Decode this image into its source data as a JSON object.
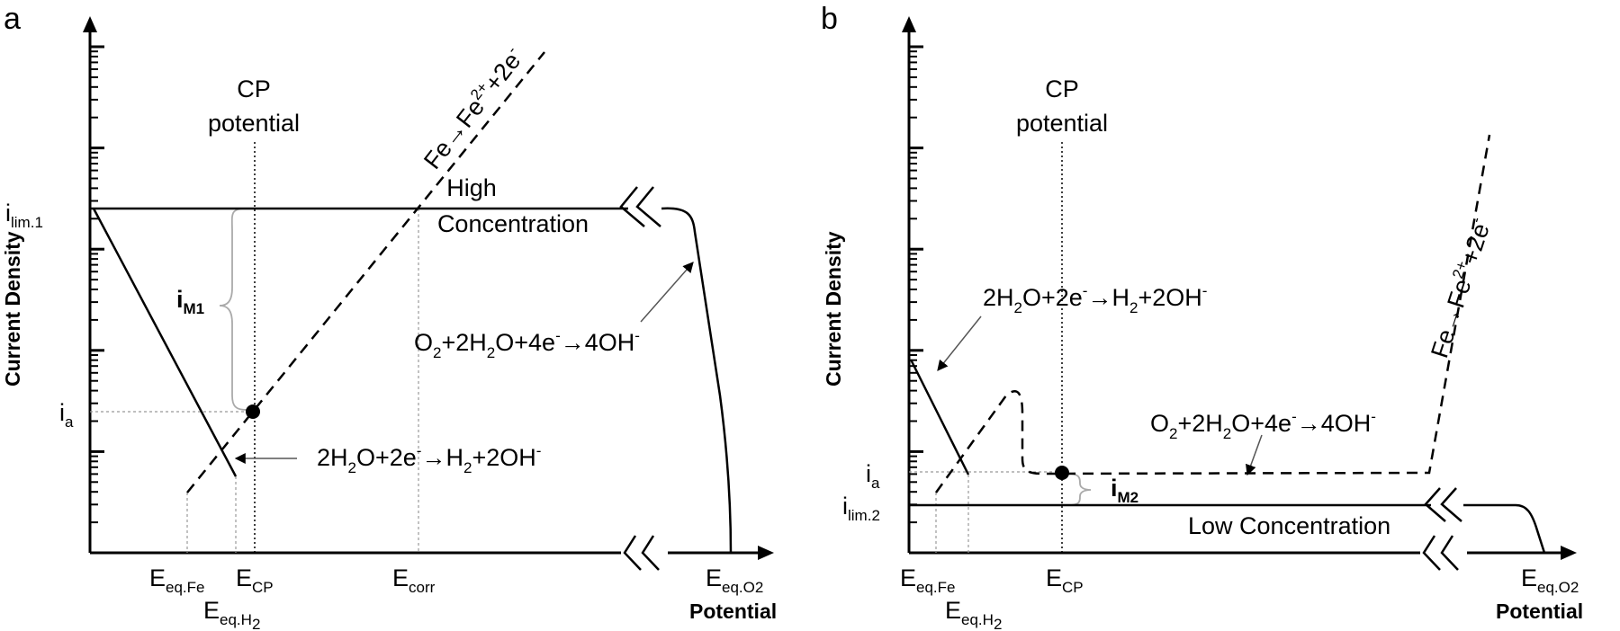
{
  "panel_a": {
    "letter": "a",
    "y_axis": "Current Density",
    "x_axis": "Potential",
    "cp_line1": "CP",
    "cp_line2": "potential",
    "fe_eq": {
      "main": "Fe→Fe",
      "sup1": "2+",
      "tail": "+2e",
      "sup2": "-"
    },
    "high_1": "High",
    "high_2": "Concentration",
    "o2_eq": {
      "a": "O",
      "s1": "2",
      "b": "+2H",
      "s2": "2",
      "c": "O+4e",
      "s3": "-",
      "d": "→4OH",
      "s4": "-"
    },
    "h2_eq": {
      "a": "2H",
      "s1": "2",
      "b": "O+2e",
      "s2": "-",
      "c": "→H",
      "s3": "2",
      "d": "+2OH",
      "s4": "-"
    },
    "ilim": {
      "main": "i",
      "sub": "lim.1"
    },
    "ia": {
      "main": "i",
      "sub": "a"
    },
    "im": {
      "main": "i",
      "sub": "M1"
    },
    "e_fe": {
      "main": "E",
      "sub": "eq.Fe"
    },
    "e_cp": {
      "main": "E",
      "sub": "CP"
    },
    "e_corr": {
      "main": "E",
      "sub": "corr"
    },
    "e_h2": {
      "main": "E",
      "sub": "eq.H",
      "subsub": "2"
    },
    "e_o2": {
      "main": "E",
      "sub": "eq.O2"
    }
  },
  "panel_b": {
    "letter": "b",
    "y_axis": "Current Density",
    "x_axis": "Potential",
    "cp_line1": "CP",
    "cp_line2": "potential",
    "fe_eq": {
      "main": "Fe→Fe",
      "sup1": "2+",
      "tail": "+2e",
      "sup2": "-"
    },
    "low": "Low Concentration",
    "o2_eq": {
      "a": "O",
      "s1": "2",
      "b": "+2H",
      "s2": "2",
      "c": "O+4e",
      "s3": "-",
      "d": "→4OH",
      "s4": "-"
    },
    "h2_eq": {
      "a": "2H",
      "s1": "2",
      "b": "O+2e",
      "s2": "-",
      "c": "→H",
      "s3": "2",
      "d": "+2OH",
      "s4": "-"
    },
    "ia": {
      "main": "i",
      "sub": "a"
    },
    "ilim": {
      "main": "i",
      "sub": "lim.2"
    },
    "im": {
      "main": "i",
      "sub": "M2"
    },
    "e_fe": {
      "main": "E",
      "sub": "eq.Fe"
    },
    "e_cp": {
      "main": "E",
      "sub": "CP"
    },
    "e_h2": {
      "main": "E",
      "sub": "eq.H",
      "subsub": "2"
    },
    "e_o2": {
      "main": "E",
      "sub": "eq.O2"
    }
  }
}
